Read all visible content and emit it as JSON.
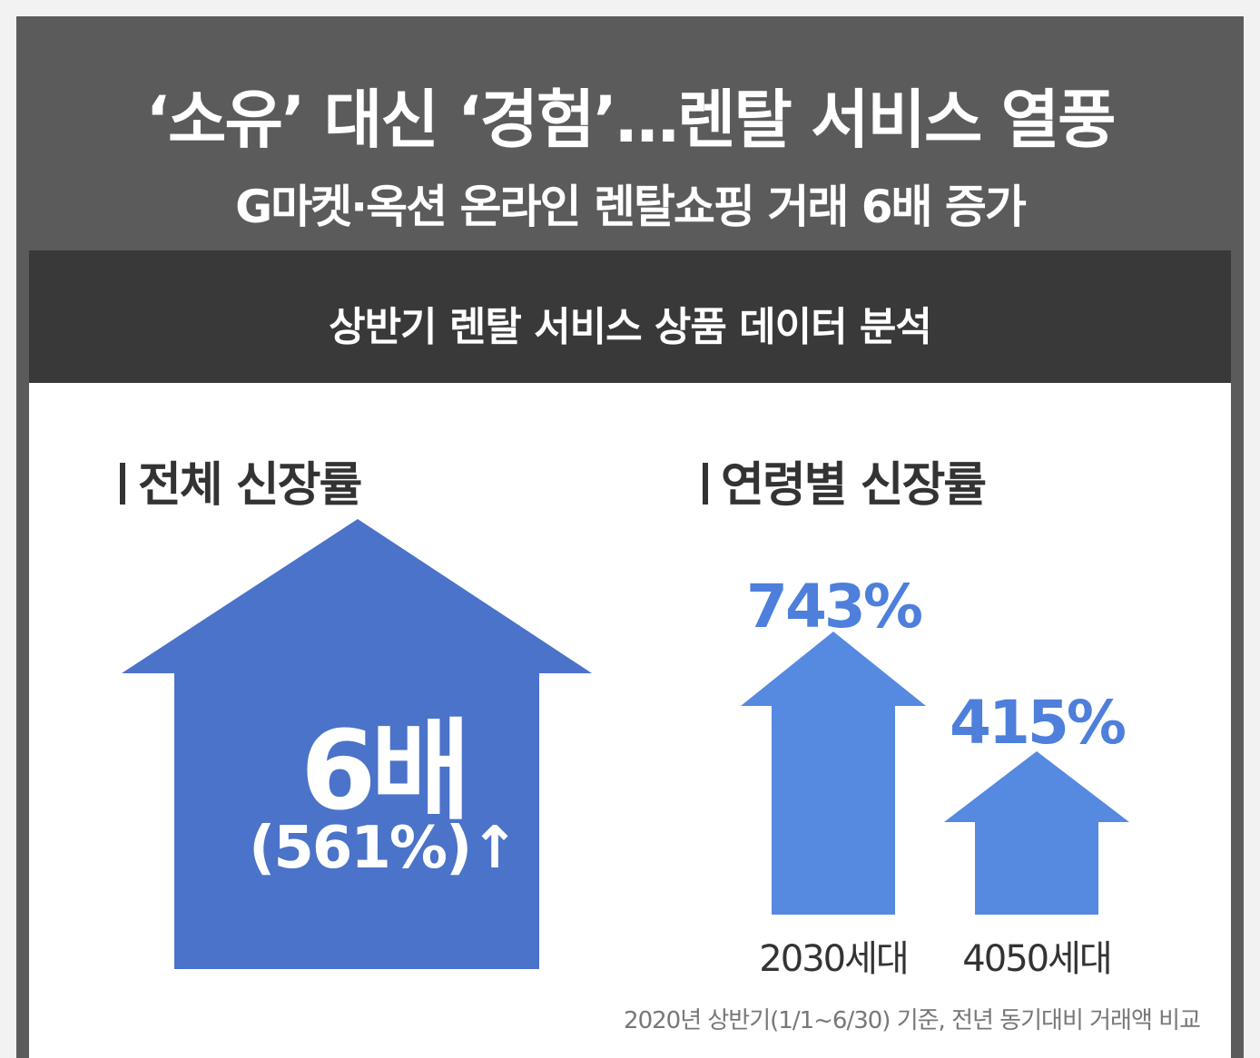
{
  "header": {
    "title": "‘소유’ 대신 ‘경험’…렌탈 서비스 열풍",
    "subtitle": "G마켓·옥션 온라인 렌탈쇼핑 거래 6배 증가"
  },
  "band": {
    "title": "상반기 렌탈 서비스 상품 데이터 분석"
  },
  "overall": {
    "label": "전체 신장률",
    "value": "6배",
    "sub": "(561%)↑"
  },
  "by_age": {
    "label": "연령별 신장률",
    "groups": [
      {
        "name": "2030세대",
        "value_text": "743%",
        "value": 743
      },
      {
        "name": "4050세대",
        "value_text": "415%",
        "value": 415
      }
    ]
  },
  "footnote": "2020년 상반기(1/1~6/30) 기준, 전년 동기대비 거래액 비교",
  "colors": {
    "dark_frame": "#5c5b5c",
    "dark_band": "#3a393a",
    "big_arrow": "#4a73c9",
    "small_arrow": "#5689e0",
    "accent_text": "#4d7fdb"
  },
  "icons": [
    "up-arrow-icon"
  ]
}
